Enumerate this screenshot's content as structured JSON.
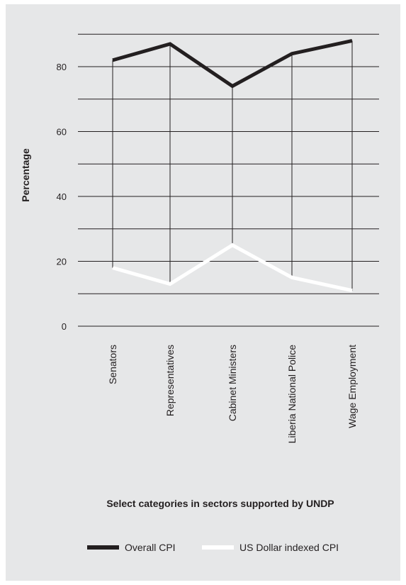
{
  "chart_data": {
    "type": "line",
    "title": "",
    "xlabel": "Select categories in sectors supported by UNDP",
    "ylabel": "Percentage",
    "categories": [
      "Senators",
      "Representatives",
      "Cabinet Ministers",
      "Liberia National Police",
      "Wage Employment"
    ],
    "ylim": [
      0,
      90
    ],
    "yticks": [
      0,
      20,
      40,
      60,
      80
    ],
    "grid_step": 10,
    "grid": true,
    "legend_position": "bottom",
    "series": [
      {
        "name": "Overall CPI",
        "color": "#231f20",
        "values": [
          82,
          87,
          74,
          84,
          88
        ]
      },
      {
        "name": "US Dollar indexed CPI",
        "color": "#ffffff",
        "values": [
          18,
          13,
          25,
          15,
          11
        ]
      }
    ]
  }
}
